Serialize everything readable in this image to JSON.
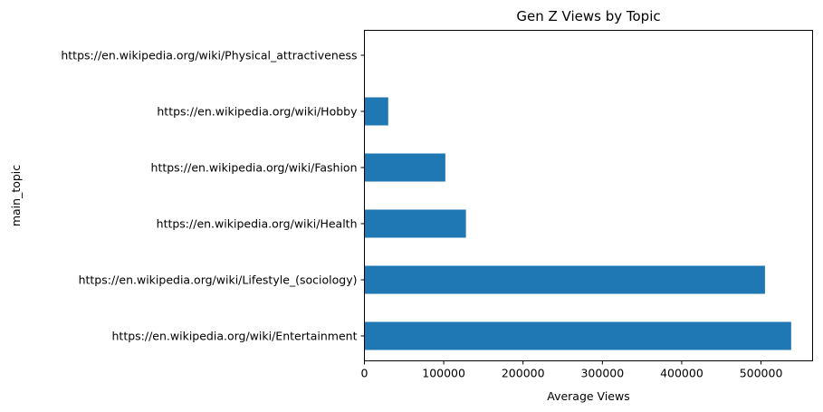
{
  "chart_data": {
    "type": "bar",
    "orientation": "horizontal",
    "title": "Gen Z Views by Topic",
    "xlabel": "Average Views",
    "ylabel": "main_topic",
    "xlim": [
      0,
      565000
    ],
    "xticks": [
      0,
      100000,
      200000,
      300000,
      400000,
      500000
    ],
    "grid": false,
    "legend": "none",
    "bar_color": "#1f77b4",
    "categories": [
      "https://en.wikipedia.org/wiki/Entertainment",
      "https://en.wikipedia.org/wiki/Lifestyle_(sociology)",
      "https://en.wikipedia.org/wiki/Health",
      "https://en.wikipedia.org/wiki/Fashion",
      "https://en.wikipedia.org/wiki/Hobby",
      "https://en.wikipedia.org/wiki/Physical_attractiveness"
    ],
    "values": [
      538000,
      505000,
      128000,
      102000,
      30000,
      0
    ]
  }
}
